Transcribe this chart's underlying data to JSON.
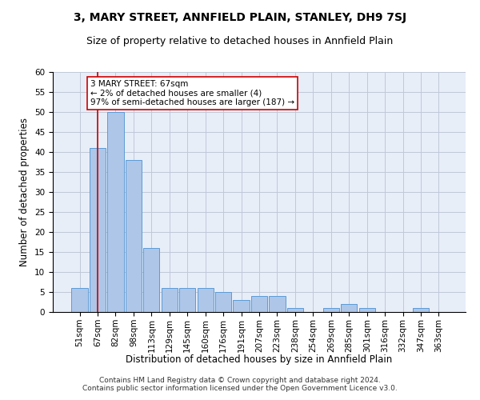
{
  "title": "3, MARY STREET, ANNFIELD PLAIN, STANLEY, DH9 7SJ",
  "subtitle": "Size of property relative to detached houses in Annfield Plain",
  "xlabel": "Distribution of detached houses by size in Annfield Plain",
  "ylabel": "Number of detached properties",
  "categories": [
    "51sqm",
    "67sqm",
    "82sqm",
    "98sqm",
    "113sqm",
    "129sqm",
    "145sqm",
    "160sqm",
    "176sqm",
    "191sqm",
    "207sqm",
    "223sqm",
    "238sqm",
    "254sqm",
    "269sqm",
    "285sqm",
    "301sqm",
    "316sqm",
    "332sqm",
    "347sqm",
    "363sqm"
  ],
  "values": [
    6,
    41,
    50,
    38,
    16,
    6,
    6,
    6,
    5,
    3,
    4,
    4,
    1,
    0,
    1,
    2,
    1,
    0,
    0,
    1,
    0
  ],
  "bar_color": "#aec6e8",
  "bar_edge_color": "#5b9bd5",
  "highlight_x": "67sqm",
  "highlight_line_color": "#cc0000",
  "annotation_text": "3 MARY STREET: 67sqm\n← 2% of detached houses are smaller (4)\n97% of semi-detached houses are larger (187) →",
  "annotation_box_color": "#ffffff",
  "annotation_box_edge_color": "#cc0000",
  "ylim": [
    0,
    60
  ],
  "yticks": [
    0,
    5,
    10,
    15,
    20,
    25,
    30,
    35,
    40,
    45,
    50,
    55,
    60
  ],
  "bg_color": "#e8eef8",
  "footer_text": "Contains HM Land Registry data © Crown copyright and database right 2024.\nContains public sector information licensed under the Open Government Licence v3.0.",
  "title_fontsize": 10,
  "subtitle_fontsize": 9,
  "xlabel_fontsize": 8.5,
  "ylabel_fontsize": 8.5,
  "tick_fontsize": 7.5,
  "annotation_fontsize": 7.5,
  "footer_fontsize": 6.5
}
